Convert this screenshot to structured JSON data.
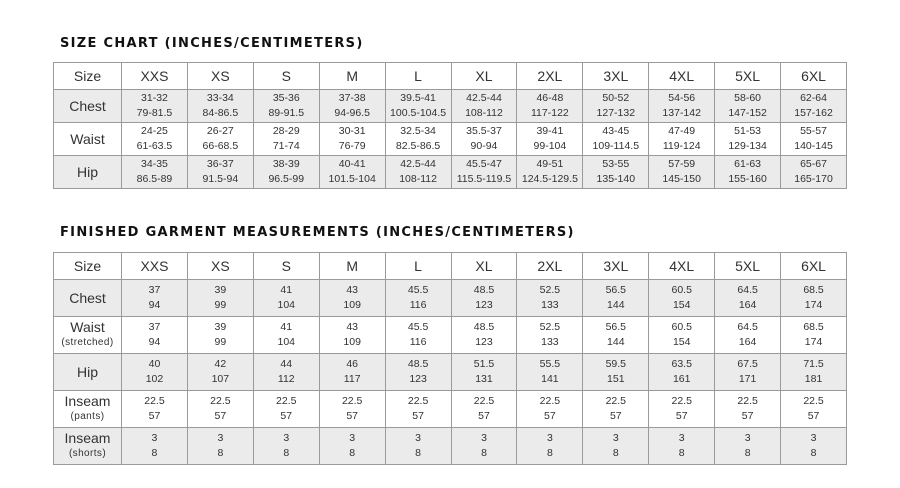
{
  "size_chart": {
    "title": "SIZE CHART (INCHES/CENTIMETERS)",
    "header": [
      "Size",
      "XXS",
      "XS",
      "S",
      "M",
      "L",
      "XL",
      "2XL",
      "3XL",
      "4XL",
      "5XL",
      "6XL"
    ],
    "rows": [
      {
        "label": "Chest",
        "sub": "",
        "shaded": true,
        "cells": [
          [
            "31-32",
            "79-81.5"
          ],
          [
            "33-34",
            "84-86.5"
          ],
          [
            "35-36",
            "89-91.5"
          ],
          [
            "37-38",
            "94-96.5"
          ],
          [
            "39.5-41",
            "100.5-104.5"
          ],
          [
            "42.5-44",
            "108-112"
          ],
          [
            "46-48",
            "117-122"
          ],
          [
            "50-52",
            "127-132"
          ],
          [
            "54-56",
            "137-142"
          ],
          [
            "58-60",
            "147-152"
          ],
          [
            "62-64",
            "157-162"
          ]
        ]
      },
      {
        "label": "Waist",
        "sub": "",
        "shaded": false,
        "cells": [
          [
            "24-25",
            "61-63.5"
          ],
          [
            "26-27",
            "66-68.5"
          ],
          [
            "28-29",
            "71-74"
          ],
          [
            "30-31",
            "76-79"
          ],
          [
            "32.5-34",
            "82.5-86.5"
          ],
          [
            "35.5-37",
            "90-94"
          ],
          [
            "39-41",
            "99-104"
          ],
          [
            "43-45",
            "109-114.5"
          ],
          [
            "47-49",
            "119-124"
          ],
          [
            "51-53",
            "129-134"
          ],
          [
            "55-57",
            "140-145"
          ]
        ]
      },
      {
        "label": "Hip",
        "sub": "",
        "shaded": true,
        "cells": [
          [
            "34-35",
            "86.5-89"
          ],
          [
            "36-37",
            "91.5-94"
          ],
          [
            "38-39",
            "96.5-99"
          ],
          [
            "40-41",
            "101.5-104"
          ],
          [
            "42.5-44",
            "108-112"
          ],
          [
            "45.5-47",
            "115.5-119.5"
          ],
          [
            "49-51",
            "124.5-129.5"
          ],
          [
            "53-55",
            "135-140"
          ],
          [
            "57-59",
            "145-150"
          ],
          [
            "61-63",
            "155-160"
          ],
          [
            "65-67",
            "165-170"
          ]
        ]
      }
    ]
  },
  "garment_chart": {
    "title": "FINISHED GARMENT MEASUREMENTS (INCHES/CENTIMETERS)",
    "header": [
      "Size",
      "XXS",
      "XS",
      "S",
      "M",
      "L",
      "XL",
      "2XL",
      "3XL",
      "4XL",
      "5XL",
      "6XL"
    ],
    "rows": [
      {
        "label": "Chest",
        "sub": "",
        "shaded": true,
        "cells": [
          [
            "37",
            "94"
          ],
          [
            "39",
            "99"
          ],
          [
            "41",
            "104"
          ],
          [
            "43",
            "109"
          ],
          [
            "45.5",
            "116"
          ],
          [
            "48.5",
            "123"
          ],
          [
            "52.5",
            "133"
          ],
          [
            "56.5",
            "144"
          ],
          [
            "60.5",
            "154"
          ],
          [
            "64.5",
            "164"
          ],
          [
            "68.5",
            "174"
          ]
        ]
      },
      {
        "label": "Waist",
        "sub": "(stretched)",
        "shaded": false,
        "cells": [
          [
            "37",
            "94"
          ],
          [
            "39",
            "99"
          ],
          [
            "41",
            "104"
          ],
          [
            "43",
            "109"
          ],
          [
            "45.5",
            "116"
          ],
          [
            "48.5",
            "123"
          ],
          [
            "52.5",
            "133"
          ],
          [
            "56.5",
            "144"
          ],
          [
            "60.5",
            "154"
          ],
          [
            "64.5",
            "164"
          ],
          [
            "68.5",
            "174"
          ]
        ]
      },
      {
        "label": "Hip",
        "sub": "",
        "shaded": true,
        "cells": [
          [
            "40",
            "102"
          ],
          [
            "42",
            "107"
          ],
          [
            "44",
            "112"
          ],
          [
            "46",
            "117"
          ],
          [
            "48.5",
            "123"
          ],
          [
            "51.5",
            "131"
          ],
          [
            "55.5",
            "141"
          ],
          [
            "59.5",
            "151"
          ],
          [
            "63.5",
            "161"
          ],
          [
            "67.5",
            "171"
          ],
          [
            "71.5",
            "181"
          ]
        ]
      },
      {
        "label": "Inseam",
        "sub": "(pants)",
        "shaded": false,
        "cells": [
          [
            "22.5",
            "57"
          ],
          [
            "22.5",
            "57"
          ],
          [
            "22.5",
            "57"
          ],
          [
            "22.5",
            "57"
          ],
          [
            "22.5",
            "57"
          ],
          [
            "22.5",
            "57"
          ],
          [
            "22.5",
            "57"
          ],
          [
            "22.5",
            "57"
          ],
          [
            "22.5",
            "57"
          ],
          [
            "22.5",
            "57"
          ],
          [
            "22.5",
            "57"
          ]
        ]
      },
      {
        "label": "Inseam",
        "sub": "(shorts)",
        "shaded": true,
        "cells": [
          [
            "3",
            "8"
          ],
          [
            "3",
            "8"
          ],
          [
            "3",
            "8"
          ],
          [
            "3",
            "8"
          ],
          [
            "3",
            "8"
          ],
          [
            "3",
            "8"
          ],
          [
            "3",
            "8"
          ],
          [
            "3",
            "8"
          ],
          [
            "3",
            "8"
          ],
          [
            "3",
            "8"
          ],
          [
            "3",
            "8"
          ]
        ]
      }
    ]
  }
}
